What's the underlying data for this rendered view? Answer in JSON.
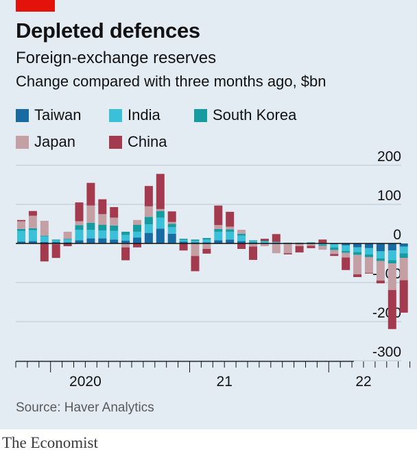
{
  "header": {
    "title": "Depleted defences",
    "subtitle": "Foreign-exchange reserves",
    "description": "Change compared with three months ago, $bn"
  },
  "source": "Source: Haver Analytics",
  "brand": "The Economist",
  "colors": {
    "background": "#e3ecf3",
    "accent": "#e3120b",
    "Taiwan": "#176aa2",
    "India": "#3ac0d8",
    "South Korea": "#169ca0",
    "Japan": "#c4a0a5",
    "China": "#a43a4d",
    "gridline": "#b4c5d2",
    "zeroline": "#121212"
  },
  "legend": [
    {
      "name": "Taiwan",
      "color": "#176aa2"
    },
    {
      "name": "India",
      "color": "#3ac0d8"
    },
    {
      "name": "South Korea",
      "color": "#169ca0"
    },
    {
      "name": "Japan",
      "color": "#c4a0a5"
    },
    {
      "name": "China",
      "color": "#a43a4d"
    }
  ],
  "chart_data": {
    "type": "bar",
    "stacked": true,
    "title": "Depleted defences",
    "subtitle": "Foreign-exchange reserves",
    "ylabel": "Change compared with three months ago, $bn",
    "ylim": [
      -300,
      200
    ],
    "yticks": [
      200,
      100,
      0,
      -100,
      -200,
      -300
    ],
    "ytick_labels": [
      "200",
      "100",
      "0",
      "-100",
      "-200",
      "-300"
    ],
    "y_axis_side": "right",
    "grid": true,
    "x_tick_labels": [
      "2020",
      "21",
      "22"
    ],
    "categories": [
      "2019-10",
      "2019-11",
      "2019-12",
      "2020-01",
      "2020-02",
      "2020-03",
      "2020-04",
      "2020-05",
      "2020-06",
      "2020-07",
      "2020-08",
      "2020-09",
      "2020-10",
      "2020-11",
      "2020-12",
      "2021-01",
      "2021-02",
      "2021-03",
      "2021-04",
      "2021-05",
      "2021-06",
      "2021-07",
      "2021-08",
      "2021-09",
      "2021-10",
      "2021-11",
      "2021-12",
      "2022-01",
      "2022-02",
      "2022-03",
      "2022-04",
      "2022-05",
      "2022-06",
      "2022-07"
    ],
    "series": [
      {
        "name": "Taiwan",
        "values": [
          5,
          6,
          4,
          4,
          3,
          8,
          13,
          13,
          10,
          7,
          15,
          27,
          38,
          25,
          5,
          3,
          3,
          8,
          10,
          6,
          3,
          2,
          2,
          1,
          0,
          2,
          1,
          -2,
          -5,
          -10,
          -12,
          -20,
          -18,
          -8
        ]
      },
      {
        "name": "India",
        "values": [
          27,
          28,
          14,
          4,
          7,
          27,
          22,
          20,
          22,
          15,
          15,
          22,
          28,
          17,
          4,
          4,
          7,
          22,
          20,
          14,
          3,
          3,
          1,
          0,
          1,
          0,
          -3,
          -8,
          -14,
          -12,
          -16,
          -18,
          -25,
          -17
        ]
      },
      {
        "name": "South Korea",
        "values": [
          5,
          5,
          2,
          2,
          2,
          12,
          18,
          15,
          14,
          8,
          18,
          19,
          17,
          8,
          3,
          3,
          4,
          7,
          6,
          5,
          2,
          2,
          1,
          1,
          1,
          1,
          -3,
          -7,
          -5,
          -7,
          -7,
          -7,
          -8,
          -12
        ]
      },
      {
        "name": "Japan",
        "values": [
          20,
          32,
          38,
          -2,
          18,
          10,
          44,
          27,
          20,
          -10,
          12,
          27,
          5,
          5,
          0,
          -32,
          -14,
          10,
          7,
          10,
          -8,
          -7,
          -25,
          -25,
          -7,
          -6,
          -10,
          -10,
          -12,
          -50,
          -40,
          -50,
          -68,
          -57
        ]
      },
      {
        "name": "China",
        "values": [
          3,
          12,
          -46,
          -35,
          -7,
          48,
          58,
          38,
          27,
          -33,
          -10,
          52,
          90,
          27,
          -18,
          -39,
          -12,
          50,
          38,
          -14,
          -34,
          5,
          20,
          -3,
          -16,
          -6,
          9,
          -5,
          -32,
          -7,
          -2,
          -7,
          -100,
          -83
        ]
      }
    ]
  }
}
